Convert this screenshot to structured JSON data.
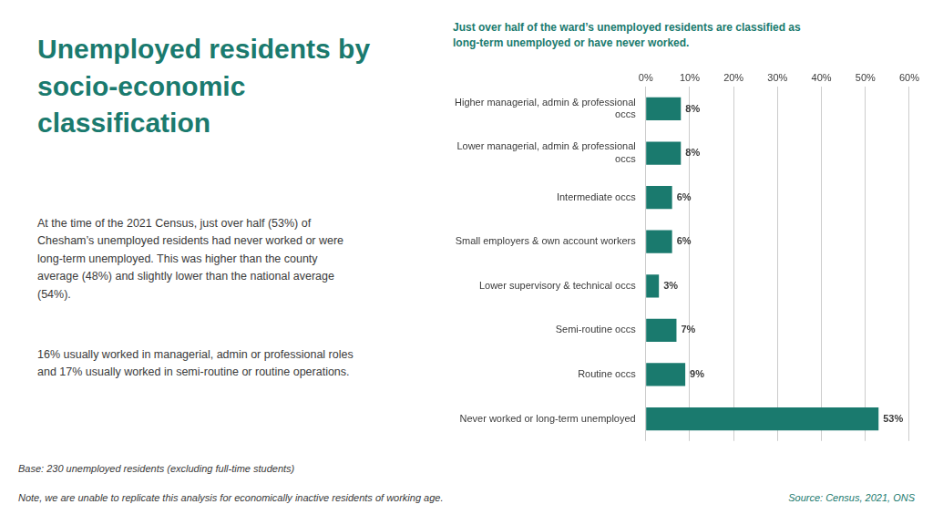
{
  "chart_data": {
    "type": "bar",
    "orientation": "horizontal",
    "title": "Unemployed residents by\nsocio-economic\nclassification",
    "subtitle": "Just over half of the ward’s unemployed residents are classified as\nlong-term unemployed or have never worked.",
    "annotations": [
      "At the time of the 2021 Census, just over half (53%) of\nChesham’s unemployed residents had never worked or were\nlong-term unemployed. This was higher than the county\naverage (48%) and slightly lower than the national average\n(54%).",
      "16% usually worked in managerial, admin or professional roles\nand 17% usually worked in semi-routine or routine operations.",
      "Base: 230 unemployed residents (excluding full-time students)",
      "Note, we are unable to replicate this analysis for economically inactive residents of working age.",
      "Source: Census, 2021, ONS"
    ],
    "categories": [
      "Higher managerial, admin & professional\noccs",
      "Lower managerial, admin & professional\noccs",
      "Intermediate occs",
      "Small employers & own account workers",
      "Lower supervisory & technical occs",
      "Semi-routine occs",
      "Routine occs",
      "Never worked or long-term unemployed"
    ],
    "values": [
      8,
      8,
      6,
      6,
      3,
      7,
      9,
      53
    ],
    "value_labels": [
      "8%",
      "8%",
      "6%",
      "6%",
      "3%",
      "7%",
      "9%",
      "53%"
    ],
    "data_labels": true,
    "color": "#1a7a6e",
    "xlim": [
      0,
      60
    ],
    "xticks": [
      {
        "value": 0,
        "label": "0%"
      },
      {
        "value": 10,
        "label": "10%"
      },
      {
        "value": 20,
        "label": "20%"
      },
      {
        "value": 30,
        "label": "30%"
      },
      {
        "value": 40,
        "label": "40%"
      },
      {
        "value": 50,
        "label": "50%"
      },
      {
        "value": 60,
        "label": "60%"
      }
    ],
    "grid": true
  }
}
